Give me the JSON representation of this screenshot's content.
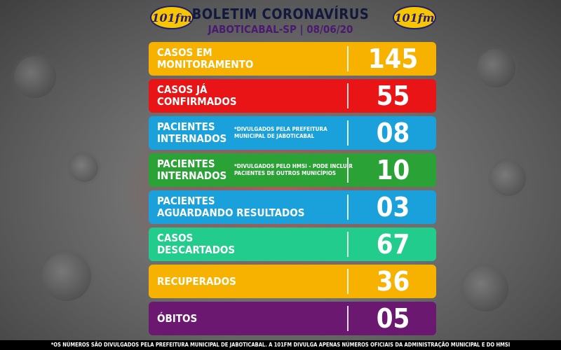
{
  "header": {
    "logo_text": "101fm",
    "title": "BOLETIM CORONAVÍRUS",
    "subtitle": "JABOTICABAL-SP | 08/06/20"
  },
  "rows": [
    {
      "label_line1": "CASOS EM",
      "label_line2": "MONITORAMENTO",
      "note_line1": "",
      "note_line2": "",
      "value": "145",
      "color": "#f7b200"
    },
    {
      "label_line1": "CASOS JÁ",
      "label_line2": "CONFIRMADOS",
      "note_line1": "",
      "note_line2": "",
      "value": "55",
      "color": "#e81416"
    },
    {
      "label_line1": "PACIENTES",
      "label_line2": "INTERNADOS",
      "note_line1": "*DIVULGADOS PELA PREFEITURA",
      "note_line2": "MUNICIPAL DE JABOTICABAL",
      "value": "08",
      "color": "#1aa1dc"
    },
    {
      "label_line1": "PACIENTES",
      "label_line2": "INTERNADOS",
      "note_line1": "*DIVULGADOS PELO HMSI - PODE INCLUIR",
      "note_line2": "PACIENTES DE OUTROS MUNICÍPIOS",
      "value": "10",
      "color": "#2aa236"
    },
    {
      "label_line1": "PACIENTES",
      "label_line2": "AGUARDANDO RESULTADOS",
      "note_line1": "",
      "note_line2": "",
      "value": "03",
      "color": "#1aa1dc"
    },
    {
      "label_line1": "CASOS",
      "label_line2": "DESCARTADOS",
      "note_line1": "",
      "note_line2": "",
      "value": "67",
      "color": "#22cc8c"
    },
    {
      "label_line1": "RECUPERADOS",
      "label_line2": "",
      "note_line1": "",
      "note_line2": "",
      "value": "36",
      "color": "#f7b200"
    },
    {
      "label_line1": "ÓBITOS",
      "label_line2": "",
      "note_line1": "",
      "note_line2": "",
      "value": "05",
      "color": "#6a1870"
    }
  ],
  "footer": "*OS NÚMEROS SÃO DIVULGADOS PELA PREFEITURA MUNICIPAL DE JABOTICABAL. A 101FM DIVULGA APENAS NÚMEROS OFICIAIS DA ADMINISTRAÇÃO MUNICIPAL E DO HMSI"
}
